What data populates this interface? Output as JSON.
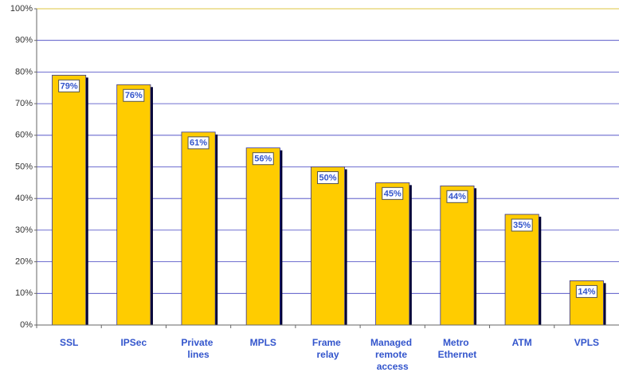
{
  "chart_data": {
    "type": "bar",
    "categories": [
      "SSL",
      "IPSec",
      "Private lines",
      "MPLS",
      "Frame relay",
      "Managed remote access",
      "Metro Ethernet",
      "ATM",
      "VPLS"
    ],
    "values": [
      79,
      76,
      61,
      56,
      50,
      45,
      44,
      35,
      14
    ],
    "value_labels": [
      "79%",
      "76%",
      "61%",
      "56%",
      "50%",
      "45%",
      "44%",
      "35%",
      "14%"
    ],
    "color": "#ffcc00",
    "ylim": [
      0,
      100
    ],
    "yticks": [
      {
        "value": 0,
        "label": "0%"
      },
      {
        "value": 10,
        "label": "10%"
      },
      {
        "value": 20,
        "label": "20%"
      },
      {
        "value": 30,
        "label": "30%"
      },
      {
        "value": 40,
        "label": "40%"
      },
      {
        "value": 50,
        "label": "50%"
      },
      {
        "value": 60,
        "label": "60%"
      },
      {
        "value": 70,
        "label": "70%"
      },
      {
        "value": 80,
        "label": "80%"
      },
      {
        "value": 90,
        "label": "90%"
      },
      {
        "value": 100,
        "label": "100%"
      }
    ],
    "grid": true
  }
}
